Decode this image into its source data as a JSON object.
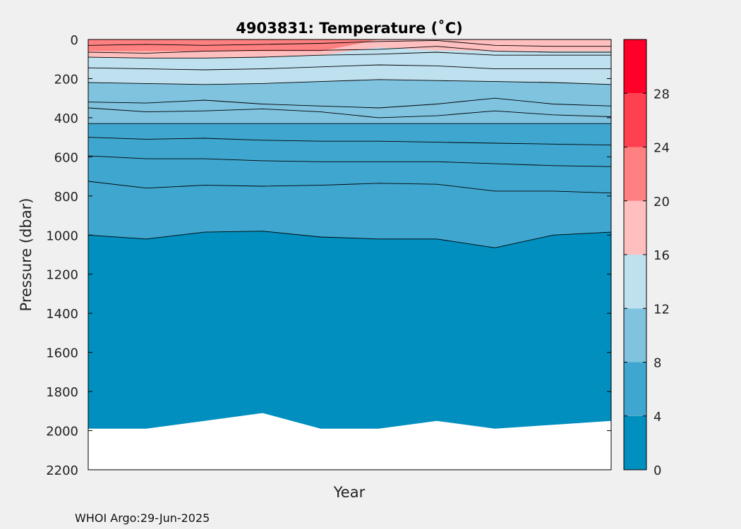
{
  "chart_data": {
    "type": "contour",
    "title": "4903831:  Temperature (˚C)",
    "xlabel": "Year",
    "ylabel": "Pressure (dbar)",
    "ylim": [
      0,
      2200
    ],
    "y_reversed": true,
    "yticks": [
      "0",
      "200",
      "400",
      "600",
      "800",
      "1000",
      "1200",
      "1400",
      "1600",
      "1800",
      "2000",
      "2200"
    ],
    "x_profiles": 10,
    "colorbar": {
      "levels": [
        0,
        4,
        8,
        12,
        16,
        20,
        24,
        28,
        32
      ],
      "tick_labels": [
        "0",
        "4",
        "8",
        "12",
        "16",
        "20",
        "24",
        "28"
      ],
      "colors": [
        "#008fbf",
        "#3fa7cf",
        "#7fc3df",
        "#bfe0ee",
        "#ffbfbf",
        "#ff8080",
        "#ff4050",
        "#ff0028"
      ]
    },
    "bands": [
      {
        "upper_temp": 24,
        "lower_temp": 20,
        "depth": [
          60,
          60,
          60,
          60,
          60,
          0,
          0,
          0,
          0,
          0
        ]
      },
      {
        "upper_temp": 20,
        "lower_temp": 16,
        "depth": [
          90,
          95,
          95,
          90,
          80,
          40,
          55,
          60,
          60,
          60
        ]
      },
      {
        "upper_temp": 16,
        "lower_temp": 12,
        "depth": [
          220,
          225,
          230,
          225,
          215,
          205,
          210,
          215,
          220,
          230
        ]
      },
      {
        "upper_temp": 12,
        "lower_temp": 8,
        "depth": [
          430,
          430,
          430,
          430,
          430,
          430,
          430,
          430,
          430,
          430
        ]
      },
      {
        "upper_temp": 8,
        "lower_temp": 4,
        "depth": [
          1000,
          1020,
          985,
          980,
          1010,
          1020,
          1020,
          1065,
          1000,
          985
        ]
      },
      {
        "upper_temp": 4,
        "lower_temp": 0,
        "depth": [
          1990,
          1990,
          1950,
          1910,
          1990,
          1990,
          1950,
          1990,
          1970,
          1950
        ]
      }
    ],
    "contours": [
      [
        30,
        25,
        30,
        25,
        20,
        10,
        5,
        30,
        35,
        35
      ],
      [
        65,
        70,
        60,
        55,
        55,
        50,
        35,
        60,
        65,
        65
      ],
      [
        90,
        95,
        95,
        90,
        80,
        75,
        65,
        80,
        80,
        80
      ],
      [
        145,
        150,
        155,
        150,
        140,
        130,
        135,
        150,
        150,
        150
      ],
      [
        220,
        225,
        230,
        225,
        215,
        205,
        210,
        215,
        220,
        230
      ],
      [
        320,
        325,
        310,
        330,
        340,
        350,
        330,
        300,
        330,
        340
      ],
      [
        350,
        370,
        365,
        355,
        370,
        400,
        390,
        365,
        385,
        395
      ],
      [
        430,
        430,
        430,
        430,
        430,
        430,
        430,
        430,
        430,
        430
      ],
      [
        500,
        510,
        505,
        515,
        520,
        520,
        525,
        530,
        535,
        540
      ],
      [
        595,
        610,
        610,
        620,
        625,
        625,
        625,
        635,
        645,
        650
      ],
      [
        725,
        760,
        745,
        750,
        745,
        735,
        740,
        775,
        775,
        785
      ],
      [
        1000,
        1020,
        985,
        980,
        1010,
        1020,
        1020,
        1065,
        1000,
        985
      ]
    ],
    "footer": "WHOI Argo:29-Jun-2025"
  }
}
